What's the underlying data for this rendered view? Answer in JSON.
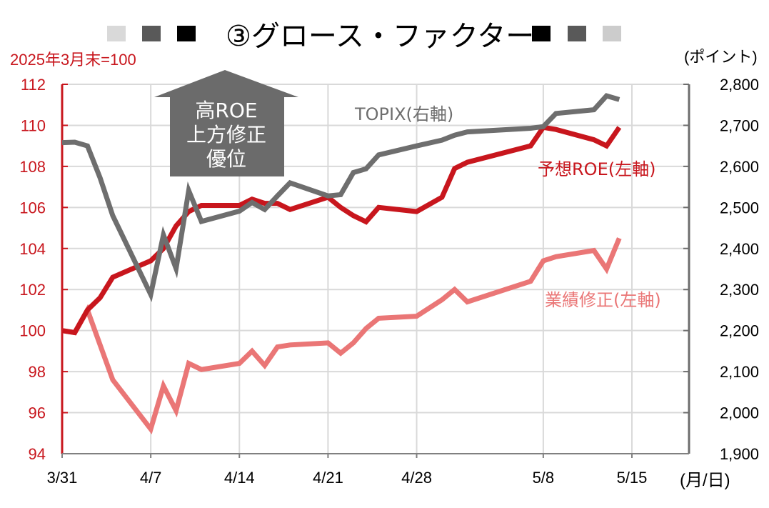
{
  "header": {
    "title": "③グロース・ファクター",
    "left_squares": [
      "#d9d9d9",
      "#595959",
      "#000000"
    ],
    "right_squares": [
      "#000000",
      "#595959",
      "#cccccc"
    ]
  },
  "annotations": {
    "left_axis_note": "2025年3月末=100",
    "right_axis_note": "(ポイント)",
    "x_unit": "(月/日)",
    "arrow_lines": [
      "高ROE",
      "上方修正",
      "優位"
    ],
    "label_topix": "TOPIX(右軸)",
    "label_roe": "予想ROE(左軸)",
    "label_rev": "業績修正(左軸)"
  },
  "chart_data": {
    "type": "line",
    "x_tick_labels": [
      "3/31",
      "4/7",
      "4/14",
      "4/21",
      "4/28",
      "5/8",
      "5/15"
    ],
    "x_tick_dates": [
      "3/31",
      "4/7",
      "4/14",
      "4/21",
      "4/28",
      "5/8",
      "5/15"
    ],
    "left_axis": {
      "ylim": [
        94,
        112
      ],
      "ticks": [
        94,
        96,
        98,
        100,
        102,
        104,
        106,
        108,
        110,
        112
      ],
      "color": "#c8161d"
    },
    "right_axis": {
      "ylim": [
        1900,
        2800
      ],
      "ticks": [
        "1,900",
        "2,000",
        "2,100",
        "2,200",
        "2,300",
        "2,400",
        "2,500",
        "2,600",
        "2,700",
        "2,800"
      ],
      "color": "#6e6e6e"
    },
    "grid": true,
    "x": [
      "3/31",
      "4/1",
      "4/2",
      "4/3",
      "4/4",
      "4/7",
      "4/8",
      "4/9",
      "4/10",
      "4/11",
      "4/14",
      "4/15",
      "4/16",
      "4/17",
      "4/18",
      "4/21",
      "4/22",
      "4/23",
      "4/24",
      "4/25",
      "4/28",
      "4/30",
      "5/1",
      "5/2",
      "5/7",
      "5/8",
      "5/9",
      "5/12",
      "5/13",
      "5/14"
    ],
    "series": [
      {
        "name": "予想ROE(左軸)",
        "axis": "left",
        "color": "#c8161d",
        "values": [
          100.0,
          99.9,
          101.0,
          101.6,
          102.6,
          103.4,
          104.0,
          105.1,
          105.8,
          106.1,
          106.1,
          106.4,
          106.2,
          106.2,
          105.9,
          106.5,
          106.0,
          105.6,
          105.3,
          106.0,
          105.8,
          106.5,
          107.9,
          108.2,
          109.0,
          109.9,
          109.8,
          109.3,
          109.0,
          109.9
        ]
      },
      {
        "name": "業績修正(左軸)",
        "axis": "left",
        "color": "#ea7676",
        "values": [
          100.0,
          99.9,
          101.0,
          99.3,
          97.6,
          95.2,
          97.3,
          96.1,
          98.4,
          98.1,
          98.4,
          99.0,
          98.3,
          99.2,
          99.3,
          99.4,
          98.9,
          99.4,
          100.1,
          100.6,
          100.7,
          101.5,
          102.0,
          101.4,
          102.4,
          103.4,
          103.6,
          103.9,
          103.0,
          104.5
        ]
      },
      {
        "name": "TOPIX(右軸)",
        "axis": "right",
        "color": "#6e6e6e",
        "values": [
          2658,
          2659,
          2650,
          2572,
          2480,
          2288,
          2433,
          2351,
          2541,
          2466,
          2491,
          2512,
          2495,
          2528,
          2560,
          2528,
          2531,
          2585,
          2594,
          2628,
          2650,
          2664,
          2676,
          2684,
          2693,
          2697,
          2729,
          2738,
          2772,
          2763
        ]
      }
    ]
  }
}
